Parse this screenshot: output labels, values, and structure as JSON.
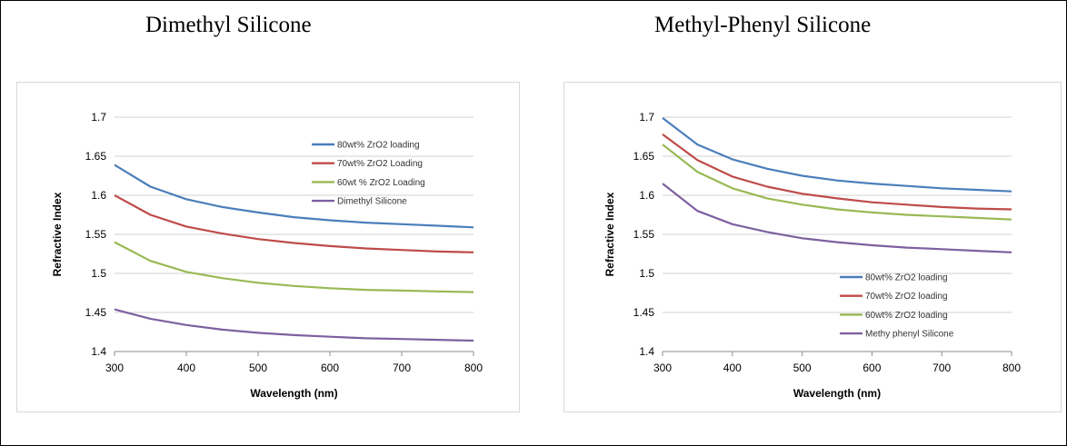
{
  "headings": {
    "left": "Dimethyl Silicone",
    "right": "Methyl-Phenyl Silicone"
  },
  "chart_data": [
    {
      "type": "line",
      "title": "Dimethyl Silicone",
      "xlabel": "Wavelength (nm)",
      "ylabel": "Refractive Index",
      "xlim": [
        300,
        800
      ],
      "ylim": [
        1.4,
        1.7
      ],
      "xticks": [
        "300",
        "400",
        "500",
        "600",
        "700",
        "800"
      ],
      "yticks": [
        "1.4",
        "1.45",
        "1.5",
        "1.55",
        "1.6",
        "1.65",
        "1.7"
      ],
      "grid": "horizontal",
      "legend_position": "top-right",
      "x": [
        300,
        350,
        400,
        450,
        500,
        550,
        600,
        650,
        700,
        750,
        800
      ],
      "series": [
        {
          "name": "80wt% ZrO2 loading",
          "color": "#4a7ebb",
          "values": [
            1.639,
            1.611,
            1.595,
            1.585,
            1.578,
            1.572,
            1.568,
            1.565,
            1.563,
            1.561,
            1.559
          ]
        },
        {
          "name": "70wt% ZrO2 Loading",
          "color": "#be4b48",
          "values": [
            1.6,
            1.575,
            1.56,
            1.551,
            1.544,
            1.539,
            1.535,
            1.532,
            1.53,
            1.528,
            1.527
          ]
        },
        {
          "name": "60wt % ZrO2 Loading",
          "color": "#98b954",
          "values": [
            1.54,
            1.516,
            1.502,
            1.494,
            1.488,
            1.484,
            1.481,
            1.479,
            1.478,
            1.477,
            1.476
          ]
        },
        {
          "name": "Dimethyl Silicone",
          "color": "#7d60a0",
          "values": [
            1.454,
            1.442,
            1.434,
            1.428,
            1.424,
            1.421,
            1.419,
            1.417,
            1.416,
            1.415,
            1.414
          ]
        }
      ]
    },
    {
      "type": "line",
      "title": "Methyl-Phenyl Silicone",
      "xlabel": "Wavelength (nm)",
      "ylabel": "Refractive Index",
      "xlim": [
        300,
        800
      ],
      "ylim": [
        1.4,
        1.7
      ],
      "xticks": [
        "300",
        "400",
        "500",
        "600",
        "700",
        "800"
      ],
      "yticks": [
        "1.4",
        "1.45",
        "1.5",
        "1.55",
        "1.6",
        "1.65",
        "1.7"
      ],
      "grid": "horizontal",
      "legend_position": "bottom-right",
      "x": [
        300,
        350,
        400,
        450,
        500,
        550,
        600,
        650,
        700,
        750,
        800
      ],
      "series": [
        {
          "name": "80wt% ZrO2 loading",
          "color": "#4a7ebb",
          "values": [
            1.699,
            1.665,
            1.646,
            1.634,
            1.625,
            1.619,
            1.615,
            1.612,
            1.609,
            1.607,
            1.605
          ]
        },
        {
          "name": "70wt% ZrO2 loading",
          "color": "#be4b48",
          "values": [
            1.678,
            1.645,
            1.624,
            1.611,
            1.602,
            1.596,
            1.591,
            1.588,
            1.585,
            1.583,
            1.582
          ]
        },
        {
          "name": "60wt% ZrO2 loading",
          "color": "#98b954",
          "values": [
            1.665,
            1.63,
            1.609,
            1.596,
            1.588,
            1.582,
            1.578,
            1.575,
            1.573,
            1.571,
            1.569
          ]
        },
        {
          "name": "Methy phenyl Silicone",
          "color": "#7d60a0",
          "values": [
            1.615,
            1.58,
            1.563,
            1.553,
            1.545,
            1.54,
            1.536,
            1.533,
            1.531,
            1.529,
            1.527
          ]
        }
      ]
    }
  ]
}
